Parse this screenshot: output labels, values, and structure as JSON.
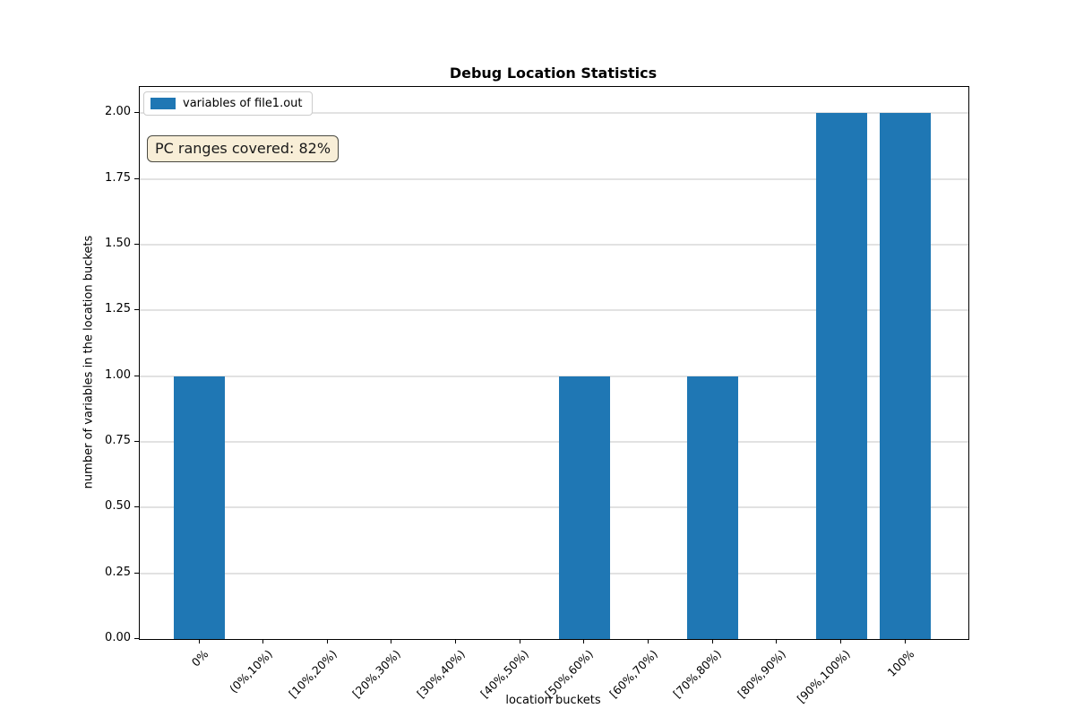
{
  "chart_data": {
    "type": "bar",
    "title": "Debug Location Statistics",
    "xlabel": "location buckets",
    "ylabel": "number of variables in the location buckets",
    "categories": [
      "0%",
      "(0%,10%)",
      "[10%,20%)",
      "[20%,30%)",
      "[30%,40%)",
      "[40%,50%)",
      "[50%,60%)",
      "[60%,70%)",
      "[70%,80%)",
      "[80%,90%)",
      "[90%,100%)",
      "100%"
    ],
    "series": [
      {
        "name": "variables of file1.out",
        "values": [
          1,
          0,
          0,
          0,
          0,
          0,
          1,
          0,
          1,
          0,
          2,
          2
        ]
      }
    ],
    "yticks": [
      0,
      0.25,
      0.5,
      0.75,
      1.0,
      1.25,
      1.5,
      1.75,
      2.0
    ],
    "ylim": [
      0,
      2.1
    ],
    "grid": "horizontal",
    "grid_color": "#e2e2e2",
    "legend_position": "upper-left",
    "bar_color": "#1f77b4",
    "annotation": {
      "text": "PC ranges covered: 82%",
      "bg_color": "#f8eed7",
      "border_color": "#4a4a42"
    }
  }
}
